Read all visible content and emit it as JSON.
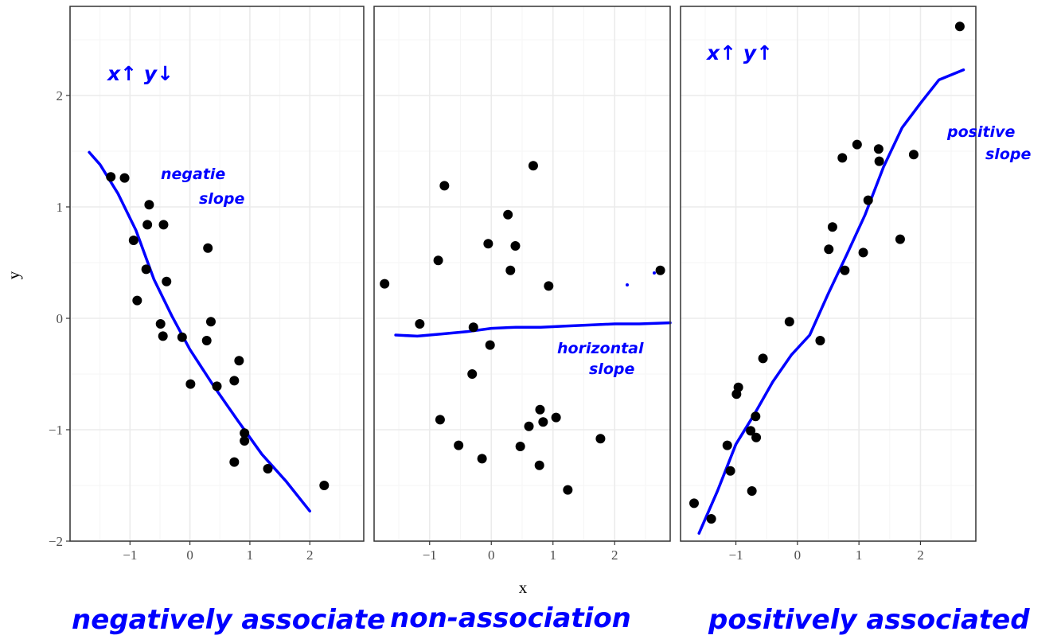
{
  "chart_data": [
    {
      "type": "scatter",
      "panel": "left",
      "points": [
        [
          -1.32,
          1.27
        ],
        [
          -1.09,
          1.26
        ],
        [
          -0.94,
          0.7
        ],
        [
          -0.68,
          1.02
        ],
        [
          -0.71,
          0.84
        ],
        [
          -0.44,
          0.84
        ],
        [
          -0.73,
          0.44
        ],
        [
          -0.88,
          0.16
        ],
        [
          -0.39,
          0.33
        ],
        [
          -0.49,
          -0.05
        ],
        [
          -0.45,
          -0.16
        ],
        [
          -0.13,
          -0.17
        ],
        [
          0.3,
          0.63
        ],
        [
          0.35,
          -0.03
        ],
        [
          0.28,
          -0.2
        ],
        [
          0.01,
          -0.59
        ],
        [
          0.45,
          -0.61
        ],
        [
          0.82,
          -0.38
        ],
        [
          0.74,
          -0.56
        ],
        [
          0.91,
          -1.03
        ],
        [
          0.91,
          -1.1
        ],
        [
          0.74,
          -1.29
        ],
        [
          1.3,
          -1.35
        ],
        [
          2.24,
          -1.5
        ]
      ],
      "trend": [
        [
          -1.68,
          1.49
        ],
        [
          -1.5,
          1.38
        ],
        [
          -1.2,
          1.12
        ],
        [
          -0.9,
          0.79
        ],
        [
          -0.6,
          0.35
        ],
        [
          -0.3,
          0.02
        ],
        [
          0.0,
          -0.28
        ],
        [
          0.4,
          -0.61
        ],
        [
          0.8,
          -0.92
        ],
        [
          1.2,
          -1.22
        ],
        [
          1.6,
          -1.46
        ],
        [
          2.0,
          -1.73
        ]
      ],
      "annotations": {
        "top": "x↑ y↓",
        "slope_line1": "negatie",
        "slope_line2": "slope",
        "bottom": "negatively associate"
      },
      "x_ticks": [
        "−1",
        "0",
        "1",
        "2"
      ],
      "y_ticks": [
        "−2",
        "−1",
        "0",
        "1",
        "2"
      ],
      "y_tick_values": [
        -2,
        -1,
        0,
        1,
        2
      ],
      "xlim": [
        -2.0,
        2.9
      ],
      "ylim": [
        -2.0,
        2.8
      ],
      "ylabel": "y"
    },
    {
      "type": "scatter",
      "panel": "middle",
      "points": [
        [
          -1.73,
          0.31
        ],
        [
          -1.16,
          -0.05
        ],
        [
          -0.86,
          0.52
        ],
        [
          -0.76,
          1.19
        ],
        [
          -0.05,
          0.67
        ],
        [
          0.27,
          0.93
        ],
        [
          0.39,
          0.65
        ],
        [
          0.68,
          1.37
        ],
        [
          0.31,
          0.43
        ],
        [
          0.93,
          0.29
        ],
        [
          2.74,
          0.43
        ],
        [
          -0.29,
          -0.08
        ],
        [
          -0.02,
          -0.24
        ],
        [
          -0.31,
          -0.5
        ],
        [
          -0.83,
          -0.91
        ],
        [
          -0.53,
          -1.14
        ],
        [
          -0.15,
          -1.26
        ],
        [
          0.79,
          -0.82
        ],
        [
          1.05,
          -0.89
        ],
        [
          0.84,
          -0.93
        ],
        [
          0.61,
          -0.97
        ],
        [
          0.47,
          -1.15
        ],
        [
          0.78,
          -1.32
        ],
        [
          1.77,
          -1.08
        ],
        [
          1.24,
          -1.54
        ]
      ],
      "trend": [
        [
          -1.55,
          -0.15
        ],
        [
          -1.2,
          -0.16
        ],
        [
          -0.8,
          -0.14
        ],
        [
          -0.4,
          -0.12
        ],
        [
          0.0,
          -0.09
        ],
        [
          0.4,
          -0.08
        ],
        [
          0.8,
          -0.08
        ],
        [
          1.2,
          -0.07
        ],
        [
          1.6,
          -0.06
        ],
        [
          2.0,
          -0.05
        ],
        [
          2.4,
          -0.05
        ],
        [
          2.9,
          -0.04
        ]
      ],
      "annotations": {
        "slope_line1": "horizontal",
        "slope_line2": "slope",
        "bottom": "non-association"
      },
      "x_ticks": [
        "−1",
        "0",
        "1",
        "2"
      ],
      "xlim": [
        -1.9,
        2.9
      ],
      "ylim": [
        -2.0,
        2.8
      ],
      "xlabel": "x"
    },
    {
      "type": "scatter",
      "panel": "right",
      "points": [
        [
          2.64,
          2.62
        ],
        [
          0.97,
          1.56
        ],
        [
          1.32,
          1.52
        ],
        [
          0.73,
          1.44
        ],
        [
          1.33,
          1.41
        ],
        [
          1.89,
          1.47
        ],
        [
          1.15,
          1.06
        ],
        [
          0.57,
          0.82
        ],
        [
          0.51,
          0.62
        ],
        [
          1.07,
          0.59
        ],
        [
          1.67,
          0.71
        ],
        [
          0.77,
          0.43
        ],
        [
          -0.13,
          -0.03
        ],
        [
          0.37,
          -0.2
        ],
        [
          -0.56,
          -0.36
        ],
        [
          -0.96,
          -0.62
        ],
        [
          -0.99,
          -0.68
        ],
        [
          -0.68,
          -0.88
        ],
        [
          -0.76,
          -1.01
        ],
        [
          -0.67,
          -1.07
        ],
        [
          -1.14,
          -1.14
        ],
        [
          -1.09,
          -1.37
        ],
        [
          -0.74,
          -1.55
        ],
        [
          -1.68,
          -1.66
        ],
        [
          -1.4,
          -1.8
        ]
      ],
      "trend": [
        [
          -1.6,
          -1.93
        ],
        [
          -1.3,
          -1.55
        ],
        [
          -1.0,
          -1.13
        ],
        [
          -0.7,
          -0.86
        ],
        [
          -0.4,
          -0.57
        ],
        [
          -0.1,
          -0.33
        ],
        [
          0.2,
          -0.15
        ],
        [
          0.5,
          0.22
        ],
        [
          0.8,
          0.57
        ],
        [
          1.1,
          0.93
        ],
        [
          1.4,
          1.36
        ],
        [
          1.7,
          1.71
        ],
        [
          2.0,
          1.93
        ],
        [
          2.3,
          2.14
        ],
        [
          2.7,
          2.23
        ]
      ],
      "annotations": {
        "top": "x↑ y↑",
        "slope_line1": "positive",
        "slope_line2": "slope",
        "bottom": "positively associated"
      },
      "x_ticks": [
        "−1",
        "0",
        "1",
        "2"
      ],
      "xlim": [
        -1.9,
        2.9
      ],
      "ylim": [
        -2.0,
        2.8
      ]
    }
  ],
  "colors": {
    "ink": "#0000ff",
    "points": "#000000",
    "panel_border": "#333333",
    "grid_major": "#ebebeb",
    "grid_minor": "#f5f5f5"
  }
}
